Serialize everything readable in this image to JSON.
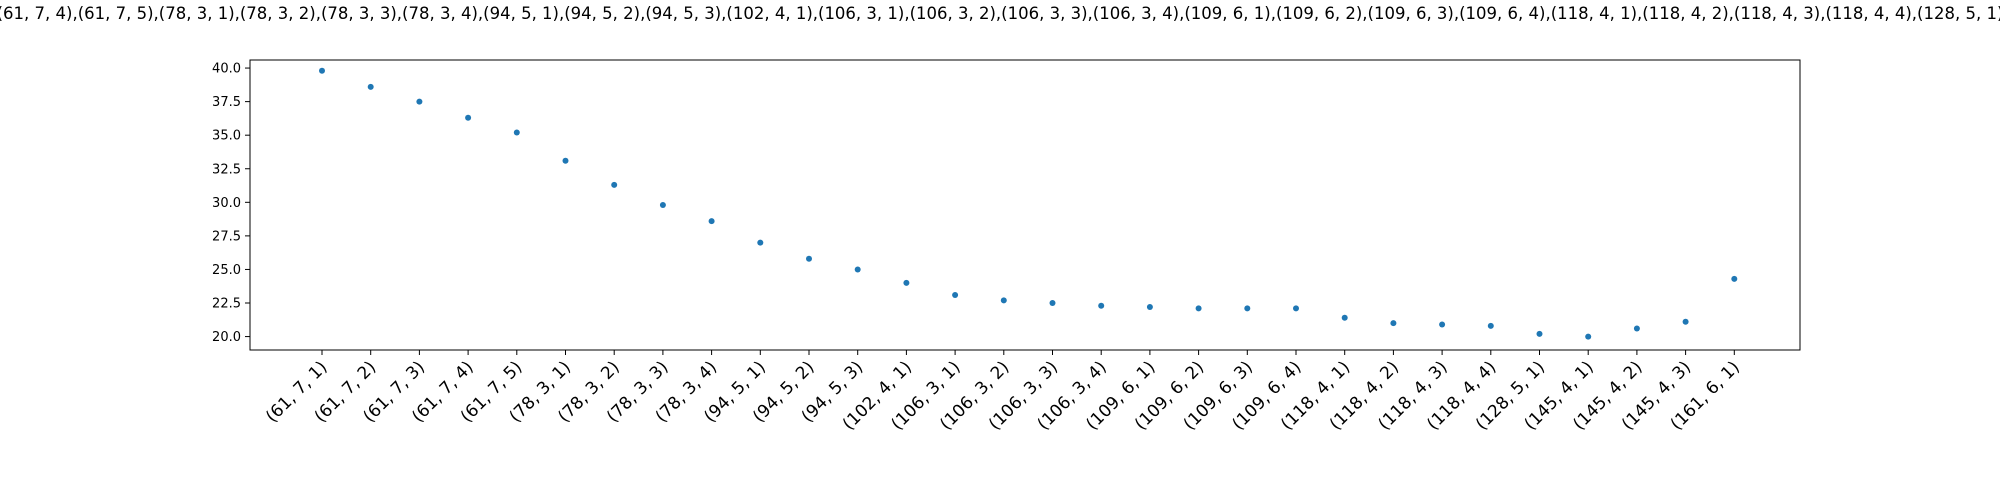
{
  "chart_data": {
    "type": "scatter",
    "title": "(61, 7, 4),(61, 7, 5),(78, 3, 1),(78, 3, 2),(78, 3, 3),(78, 3, 4),(94, 5, 1),(94, 5, 2),(94, 5, 3),(102, 4, 1),(106, 3, 1),(106, 3, 2),(106, 3, 3),(106, 3, 4),(109, 6, 1),(109, 6, 2),(109, 6, 3),(109, 6, 4),(118, 4, 1),(118, 4, 2),(118, 4, 3),(118, 4, 4),(128, 5, 1)",
    "xlabel": "",
    "ylabel": "",
    "categories": [
      "(61, 7, 1)",
      "(61, 7, 2)",
      "(61, 7, 3)",
      "(61, 7, 4)",
      "(61, 7, 5)",
      "(78, 3, 1)",
      "(78, 3, 2)",
      "(78, 3, 3)",
      "(78, 3, 4)",
      "(94, 5, 1)",
      "(94, 5, 2)",
      "(94, 5, 3)",
      "(102, 4, 1)",
      "(106, 3, 1)",
      "(106, 3, 2)",
      "(106, 3, 3)",
      "(106, 3, 4)",
      "(109, 6, 1)",
      "(109, 6, 2)",
      "(109, 6, 3)",
      "(109, 6, 4)",
      "(118, 4, 1)",
      "(118, 4, 2)",
      "(118, 4, 3)",
      "(118, 4, 4)",
      "(128, 5, 1)",
      "(145, 4, 1)",
      "(145, 4, 2)",
      "(145, 4, 3)",
      "(161, 6, 1)"
    ],
    "values": [
      39.8,
      38.6,
      37.5,
      36.3,
      35.2,
      33.1,
      31.3,
      29.8,
      28.6,
      27.0,
      25.8,
      25.0,
      24.0,
      23.1,
      22.7,
      22.5,
      22.3,
      22.2,
      22.1,
      22.1,
      22.1,
      21.4,
      21.0,
      20.9,
      20.8,
      20.2,
      20.0,
      20.6,
      21.1,
      24.3
    ],
    "yticks": [
      "20.0",
      "22.5",
      "25.0",
      "27.5",
      "30.0",
      "32.5",
      "35.0",
      "37.5",
      "40.0"
    ],
    "ylim": [
      19.0,
      40.6
    ],
    "grid": false,
    "marker_color": "#1f77b4"
  }
}
